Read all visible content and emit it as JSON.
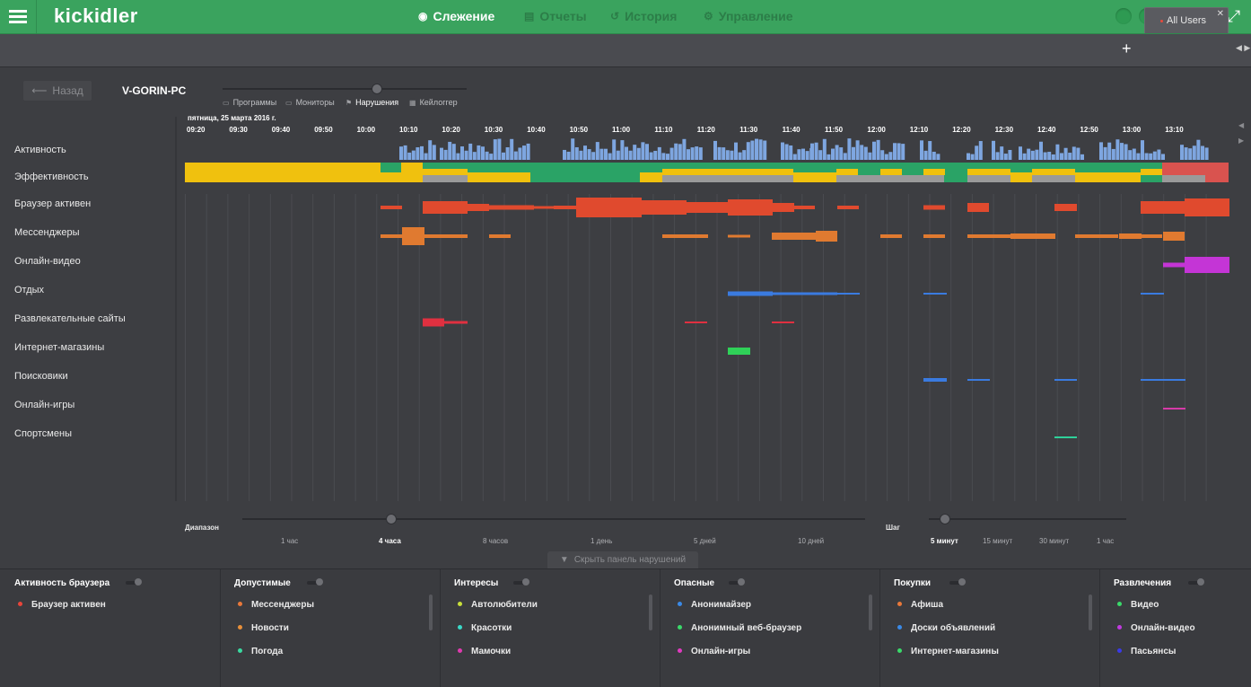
{
  "topbar": {
    "logo": "kickidler",
    "nav": [
      {
        "icon": "eye-icon",
        "glyph": "◉",
        "label": "Слежение",
        "active": true
      },
      {
        "icon": "report-icon",
        "glyph": "▤",
        "label": "Отчеты",
        "active": false
      },
      {
        "icon": "history-icon",
        "glyph": "↺",
        "label": "История",
        "active": false
      },
      {
        "icon": "gear-icon",
        "glyph": "⚙",
        "label": "Управление",
        "active": false
      }
    ]
  },
  "tabs": {
    "active_tab": "All Users",
    "add": "+"
  },
  "header": {
    "back_label": "Назад",
    "pc_name": "V-GORIN-PC",
    "modes": [
      {
        "icon": "folder-icon",
        "glyph": "▭",
        "label": "Программы",
        "active": false
      },
      {
        "icon": "monitor-icon",
        "glyph": "▭",
        "label": "Мониторы",
        "active": false
      },
      {
        "icon": "flag-icon",
        "glyph": "⚑",
        "label": "Нарушения",
        "active": true
      },
      {
        "icon": "keyboard-icon",
        "glyph": "▦",
        "label": "Кейлоггер",
        "active": false
      }
    ]
  },
  "timeline": {
    "date_label": "пятница, 25 марта 2016 г.",
    "ticks": [
      "09:20",
      "09:30",
      "09:40",
      "09:50",
      "10:00",
      "10:10",
      "10:20",
      "10:30",
      "10:40",
      "10:50",
      "11:00",
      "11:10",
      "11:20",
      "11:30",
      "11:40",
      "11:50",
      "12:00",
      "12:10",
      "12:20",
      "12:30",
      "12:40",
      "12:50",
      "13:00",
      "13:10"
    ],
    "rows": [
      "Активность",
      "Эффективность",
      "Браузер активен",
      "Мессенджеры",
      "Онлайн-видео",
      "Отдых",
      "Развлекательные сайты",
      "Интернет-магазины",
      "Поисковики",
      "Онлайн-игры",
      "Спортсмены"
    ]
  },
  "range": {
    "label": "Диапазон",
    "options": [
      "1 час",
      "4 часа",
      "8 часов",
      "1 день",
      "5 дней",
      "10 дней"
    ],
    "selected": "4 часа"
  },
  "step": {
    "label": "Шаг",
    "options": [
      "5 минут",
      "15 минут",
      "30 минут",
      "1 час"
    ],
    "selected": "5 минут"
  },
  "hide_panel_label": "Скрыть панель нарушений",
  "categories": [
    {
      "title": "Активность браузера",
      "items": [
        {
          "label": "Браузер активен",
          "color": "#e8453a"
        }
      ]
    },
    {
      "title": "Допустимые",
      "items": [
        {
          "label": "Мессенджеры",
          "color": "#e8783a"
        },
        {
          "label": "Новости",
          "color": "#e8903a"
        },
        {
          "label": "Погода",
          "color": "#3ad9a0"
        }
      ]
    },
    {
      "title": "Интересы",
      "items": [
        {
          "label": "Автолюбители",
          "color": "#c8e03a"
        },
        {
          "label": "Красотки",
          "color": "#3ad9c8"
        },
        {
          "label": "Мамочки",
          "color": "#e03ab0"
        }
      ]
    },
    {
      "title": "Опасные",
      "items": [
        {
          "label": "Анонимайзер",
          "color": "#3a8ae8"
        },
        {
          "label": "Анонимный веб-браузер",
          "color": "#3ad96a"
        },
        {
          "label": "Онлайн-игры",
          "color": "#e03ac0"
        }
      ]
    },
    {
      "title": "Покупки",
      "items": [
        {
          "label": "Афиша",
          "color": "#e8783a"
        },
        {
          "label": "Доски объявлений",
          "color": "#3a8ae8"
        },
        {
          "label": "Интернет-магазины",
          "color": "#3ad96a"
        }
      ]
    },
    {
      "title": "Развлечения",
      "items": [
        {
          "label": "Видео",
          "color": "#3ad96a"
        },
        {
          "label": "Онлайн-видео",
          "color": "#c03ae0"
        },
        {
          "label": "Пасьянсы",
          "color": "#3a3ae8"
        }
      ]
    }
  ],
  "colors": {
    "activity": "#7ea6e0",
    "effect_yellow": "#f0c10e",
    "effect_green": "#2aa366",
    "effect_gray": "#9a9a9a",
    "effect_red": "#d9534f",
    "browser": "#e04a2e",
    "messenger": "#e07a30",
    "video": "#c435d6",
    "rest": "#3a7be0",
    "fun": "#e03040",
    "shop": "#2fd158",
    "search": "#3a7be0",
    "games": "#d63aa8",
    "sport": "#2fd19a"
  }
}
